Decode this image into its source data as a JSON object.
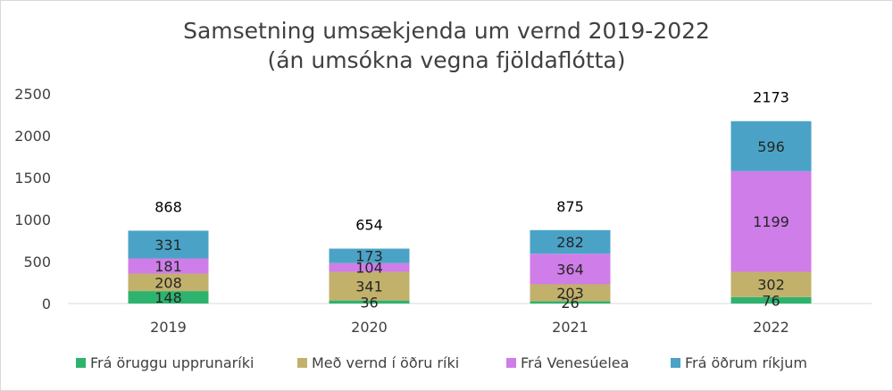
{
  "chart_data": {
    "type": "bar",
    "stacked": true,
    "title": [
      "Samsetning umsækjenda um vernd 2019-2022",
      "(án umsókna vegna fjöldaflótta)"
    ],
    "xlabel": "",
    "ylabel": "",
    "categories": [
      "2019",
      "2020",
      "2021",
      "2022"
    ],
    "ylim": [
      0,
      2500
    ],
    "yticks": [
      0,
      500,
      1000,
      1500,
      2000,
      2500
    ],
    "grid": false,
    "legend_position": "bottom",
    "series": [
      {
        "name": "Frá öruggu upprunaríki",
        "color": "#2db36e",
        "values": [
          148,
          36,
          26,
          76
        ]
      },
      {
        "name": "Með vernd í öðru ríki",
        "color": "#c2b16b",
        "values": [
          208,
          341,
          203,
          302
        ]
      },
      {
        "name": "Frá Venesúelea",
        "color": "#cf7de8",
        "values": [
          181,
          104,
          364,
          1199
        ]
      },
      {
        "name": "Frá öðrum ríkjum",
        "color": "#4aa3c6",
        "values": [
          331,
          173,
          282,
          596
        ]
      }
    ],
    "totals": [
      868,
      654,
      875,
      2173
    ]
  }
}
